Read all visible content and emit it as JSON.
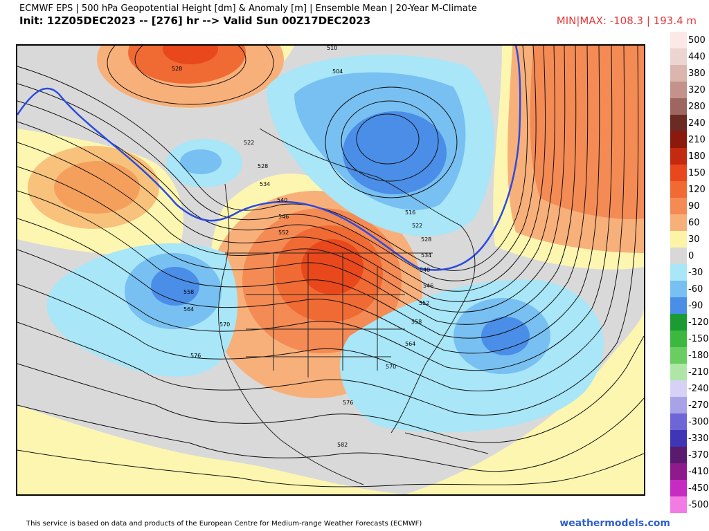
{
  "header": {
    "line1": "ECMWF EPS | 500 hPa Geopotential Height [dm] & Anomaly [m] | Ensemble Mean | 20-Year M-Climate",
    "line2": "Init: 12Z05DEC2023 -- [276] hr --> Valid Sun 00Z17DEC2023",
    "minmax": "MIN|MAX: -108.3 | 193.4 m"
  },
  "map": {
    "contour_labels": [
      "510",
      "504",
      "528",
      "522",
      "528",
      "534",
      "540",
      "546",
      "552",
      "558",
      "564",
      "570",
      "576",
      "516",
      "522",
      "528",
      "534",
      "540",
      "546",
      "552",
      "558",
      "564",
      "570",
      "576",
      "582"
    ]
  },
  "legend": {
    "levels": [
      {
        "label": "500",
        "color": "#fce8e6"
      },
      {
        "label": "440",
        "color": "#ecd5d1"
      },
      {
        "label": "380",
        "color": "#dab6ae"
      },
      {
        "label": "320",
        "color": "#c4928a"
      },
      {
        "label": "280",
        "color": "#9e6660"
      },
      {
        "label": "240",
        "color": "#6b2a22"
      },
      {
        "label": "210",
        "color": "#8c1a0c"
      },
      {
        "label": "180",
        "color": "#c42a10"
      },
      {
        "label": "150",
        "color": "#e8481c"
      },
      {
        "label": "120",
        "color": "#f06a34"
      },
      {
        "label": "90",
        "color": "#f48a54"
      },
      {
        "label": "60",
        "color": "#f8b07a"
      },
      {
        "label": "30",
        "color": "#fdf3a6"
      },
      {
        "label": "0",
        "color": "#d8d8d8"
      },
      {
        "label": "-30",
        "color": "#a8e6f8"
      },
      {
        "label": "-60",
        "color": "#78c0f2"
      },
      {
        "label": "-90",
        "color": "#4a8ee8"
      },
      {
        "label": "-120",
        "color": "#1c9a34"
      },
      {
        "label": "-150",
        "color": "#3cb83e"
      },
      {
        "label": "-180",
        "color": "#6acd62"
      },
      {
        "label": "-210",
        "color": "#aee6a6"
      },
      {
        "label": "-240",
        "color": "#d6d2f6"
      },
      {
        "label": "-270",
        "color": "#a8a2e8"
      },
      {
        "label": "-300",
        "color": "#6e66d6"
      },
      {
        "label": "-330",
        "color": "#3e36b6"
      },
      {
        "label": "-370",
        "color": "#5a1a6e"
      },
      {
        "label": "-410",
        "color": "#8e1a8e"
      },
      {
        "label": "-450",
        "color": "#c62cc2"
      },
      {
        "label": "-500",
        "color": "#f27ce4"
      }
    ]
  },
  "footer": {
    "disclaimer": "This service is based on data and products of the European Centre for Medium-range Weather Forecasts (ECMWF)",
    "brand": "weathermodels.com"
  }
}
